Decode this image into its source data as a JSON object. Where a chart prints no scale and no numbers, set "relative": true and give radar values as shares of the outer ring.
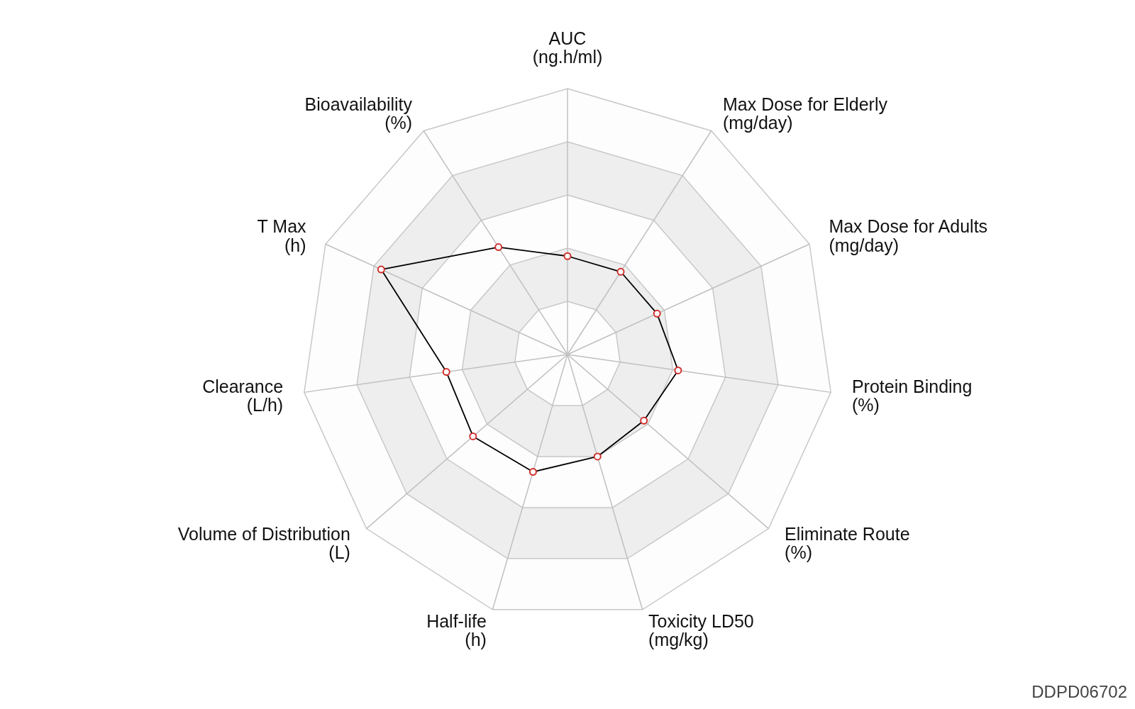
{
  "chart_data": {
    "type": "radar",
    "relative": true,
    "categories": [
      "AUC\n(ng.h/ml)",
      "Max Dose for Elderly\n(mg/day)",
      "Max Dose for Adults\n(mg/day)",
      "Protein Binding\n(%)",
      "Eliminate Route\n(%)",
      "Toxicity LD50\n(mg/kg)",
      "Half-life\n(h)",
      "Volume of Distribution\n(L)",
      "Clearance\n(L/h)",
      "T Max\n(h)",
      "Bioavailability\n(%)"
    ],
    "series": [
      {
        "color": "#000000",
        "values": [
          0.37,
          0.37,
          0.37,
          0.42,
          0.38,
          0.4,
          0.46,
          0.47,
          0.46,
          0.77,
          0.48
        ]
      }
    ],
    "grid": true,
    "marker": "circle",
    "line_style": "solid",
    "annotations": [
      "DDPD06702"
    ]
  }
}
